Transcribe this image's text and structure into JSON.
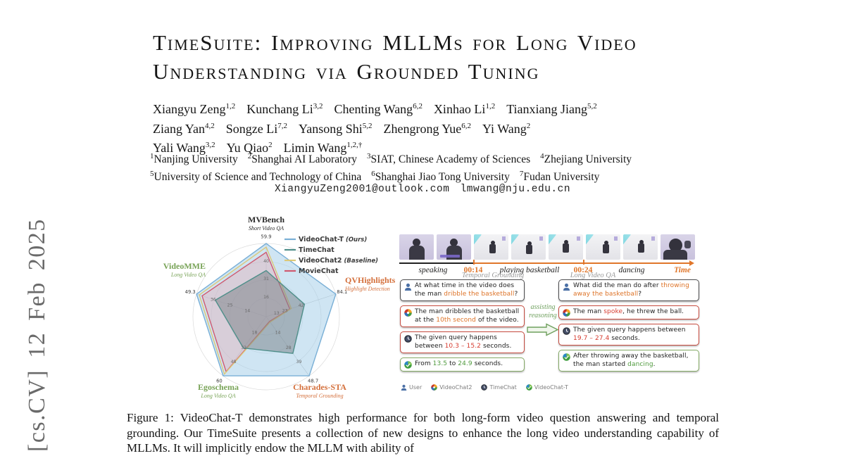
{
  "watermark": {
    "text": "[cs.CV]  12 Feb 2025"
  },
  "paper": {
    "title_lines": [
      "TimeSuite: Improving MLLMs for Long Video",
      "Understanding via Grounded Tuning"
    ],
    "authors": {
      "lines": [
        [
          {
            "name": "Xiangyu Zeng",
            "sup": "1,2"
          },
          {
            "name": "Kunchang Li",
            "sup": "3,2"
          },
          {
            "name": "Chenting Wang",
            "sup": "6,2"
          },
          {
            "name": "Xinhao Li",
            "sup": "1,2"
          },
          {
            "name": "Tianxiang Jiang",
            "sup": "5,2"
          }
        ],
        [
          {
            "name": "Ziang Yan",
            "sup": "4,2"
          },
          {
            "name": "Songze Li",
            "sup": "7,2"
          },
          {
            "name": "Yansong Shi",
            "sup": "5,2"
          },
          {
            "name": "Zhengrong Yue",
            "sup": "6,2"
          },
          {
            "name": "Yi Wang",
            "sup": "2"
          }
        ],
        [
          {
            "name": "Yali Wang",
            "sup": "3,2"
          },
          {
            "name": "Yu Qiao",
            "sup": "2"
          },
          {
            "name": "Limin Wang",
            "sup": "1,2,†"
          }
        ]
      ]
    },
    "affiliations": {
      "lines": [
        [
          {
            "sup": "1",
            "text": "Nanjing University"
          },
          {
            "sup": "2",
            "text": "Shanghai AI Laboratory"
          },
          {
            "sup": "3",
            "text": "SIAT, Chinese Academy of Sciences"
          },
          {
            "sup": "4",
            "text": "Zhejiang University"
          }
        ],
        [
          {
            "sup": "5",
            "text": "University of Science and Technology of China"
          },
          {
            "sup": "6",
            "text": "Shanghai Jiao Tong University"
          },
          {
            "sup": "7",
            "text": "Fudan University"
          }
        ]
      ]
    },
    "emails": "XiangyuZeng2001@outlook.com lmwang@nju.edu.cn",
    "caption": "Figure 1: VideoChat-T demonstrates high performance for both long-form video question answering and temporal grounding. Our TimeSuite presents a collection of new designs to enhance the long video understanding capability of MLLMs. It will implicitly endow the MLLM with ability of"
  },
  "chart_data": {
    "type": "radar",
    "grid_rings": [
      0.25,
      0.5,
      0.75,
      1.0
    ],
    "axes": [
      {
        "label": "MVBench",
        "sublabel": "Short Video QA",
        "color": "#2a2a2a",
        "tick_labels": [
          {
            "t": "59.9",
            "f": 1.0
          },
          {
            "t": "40",
            "f": 0.76
          },
          {
            "t": "31",
            "f": 0.52
          },
          {
            "t": "16",
            "f": 0.27
          }
        ]
      },
      {
        "label": "QVHighlights",
        "sublabel": "Highlight Detection",
        "color": "#d4703c",
        "tick_labels": [
          {
            "t": "84.1",
            "f": 1.0
          },
          {
            "t": "42",
            "f": 0.5
          },
          {
            "t": "23",
            "f": 0.27
          },
          {
            "t": "13",
            "f": 0.15
          }
        ]
      },
      {
        "label": "Charades-STA",
        "sublabel": "Temporal Grounding",
        "color": "#d4703c",
        "tick_labels": [
          {
            "t": "48.7",
            "f": 1.0
          },
          {
            "t": "39",
            "f": 0.76
          },
          {
            "t": "28",
            "f": 0.52
          },
          {
            "t": "14",
            "f": 0.27
          }
        ]
      },
      {
        "label": "Egoschema",
        "sublabel": "Long Video QA",
        "color": "#78a357",
        "tick_labels": [
          {
            "t": "60",
            "f": 1.0
          },
          {
            "t": "48",
            "f": 0.76
          },
          {
            "t": "32",
            "f": 0.52
          },
          {
            "t": "18",
            "f": 0.27
          }
        ]
      },
      {
        "label": "VideoMME",
        "sublabel": "Long Video QA",
        "color": "#78a357",
        "tick_labels": [
          {
            "t": "49.3",
            "f": 1.0
          },
          {
            "t": "36",
            "f": 0.76
          },
          {
            "t": "25",
            "f": 0.52
          },
          {
            "t": "14",
            "f": 0.27
          }
        ]
      }
    ],
    "series": [
      {
        "name": "VideoChat-T",
        "suffix": "(Ours)",
        "color": "#79afd6",
        "fill": "rgba(168,208,234,0.55)",
        "values_fraction": [
          1.0,
          1.0,
          1.0,
          1.0,
          1.0
        ]
      },
      {
        "name": "TimeChat",
        "suffix": "",
        "color": "#4f8f8a",
        "fill": "rgba(120,128,134,0.5)",
        "values_fraction": [
          0.63,
          0.55,
          0.62,
          0.53,
          0.73
        ]
      },
      {
        "name": "VideoChat2",
        "suffix": "(Baseline)",
        "color": "#dcc878",
        "fill": "none",
        "values_fraction": [
          0.95,
          0.36,
          0.09,
          0.97,
          0.96
        ]
      },
      {
        "name": "MovieChat",
        "suffix": "",
        "color": "#cf5a70",
        "fill": "rgba(226,178,186,0.45)",
        "values_fraction": [
          0.88,
          0.34,
          0.08,
          0.93,
          0.92
        ]
      }
    ],
    "legend_position": "top-right"
  },
  "colors": {
    "orange": "#dd7226",
    "red": "#d63b2f",
    "green": "#4f9a3d",
    "timeline": "#e0762a"
  },
  "figure": {
    "video_strip": {
      "frames": [
        {
          "kind": "speaking"
        },
        {
          "kind": "speaking",
          "caption": true
        },
        {
          "kind": "court"
        },
        {
          "kind": "court"
        },
        {
          "kind": "court"
        },
        {
          "kind": "court"
        },
        {
          "kind": "court"
        },
        {
          "kind": "closeup"
        }
      ],
      "timeline_labels": [
        {
          "text": "speaking",
          "type": "event"
        },
        {
          "text": "00:14",
          "type": "time"
        },
        {
          "text": "playing basketball",
          "type": "event"
        },
        {
          "text": "00:24",
          "type": "time"
        },
        {
          "text": "dancing",
          "type": "event"
        },
        {
          "text": "Time",
          "type": "axis"
        }
      ]
    },
    "assist_label": "assisting reasoning",
    "panels": [
      {
        "title": "Temporal Grounding",
        "bubbles": [
          {
            "icon": "user",
            "role": "question",
            "segments": [
              {
                "t": "At what time in the video does the man "
              },
              {
                "t": "dribble the basketball",
                "c": "orange"
              },
              {
                "t": "?"
              }
            ]
          },
          {
            "icon": "videochat2",
            "role": "wrong",
            "segments": [
              {
                "t": "The man dribbles the basketball at the "
              },
              {
                "t": "10th second",
                "c": "orange"
              },
              {
                "t": " of the video."
              }
            ]
          },
          {
            "icon": "timechat",
            "role": "wrong",
            "segments": [
              {
                "t": "The given query happens between "
              },
              {
                "t": "10.3 – 15.2",
                "c": "red"
              },
              {
                "t": " seconds."
              }
            ]
          },
          {
            "icon": "videochatt",
            "role": "right",
            "segments": [
              {
                "t": "From "
              },
              {
                "t": "13.5",
                "c": "green"
              },
              {
                "t": " to "
              },
              {
                "t": "24.9",
                "c": "green"
              },
              {
                "t": " seconds."
              }
            ]
          }
        ]
      },
      {
        "title": "Long Video QA",
        "bubbles": [
          {
            "icon": "user",
            "role": "question",
            "segments": [
              {
                "t": "What did the man do after "
              },
              {
                "t": "throwing away the basketball",
                "c": "orange"
              },
              {
                "t": "?"
              }
            ]
          },
          {
            "icon": "videochat2",
            "role": "wrong",
            "segments": [
              {
                "t": "The man "
              },
              {
                "t": "spoke",
                "c": "red"
              },
              {
                "t": ", he threw the ball."
              }
            ]
          },
          {
            "icon": "timechat",
            "role": "wrong",
            "segments": [
              {
                "t": "The given query happens between "
              },
              {
                "t": "19.7 – 27.4",
                "c": "red"
              },
              {
                "t": " seconds."
              }
            ]
          },
          {
            "icon": "videochatt",
            "role": "right",
            "segments": [
              {
                "t": "After throwing away the basketball, the man started "
              },
              {
                "t": "dancing",
                "c": "green"
              },
              {
                "t": "."
              }
            ]
          }
        ]
      }
    ],
    "icon_legend": [
      {
        "icon": "user",
        "label": "User"
      },
      {
        "icon": "videochat2",
        "label": "VideoChat2"
      },
      {
        "icon": "timechat",
        "label": "TimeChat"
      },
      {
        "icon": "videochatt",
        "label": "VideoChat-T"
      }
    ]
  }
}
